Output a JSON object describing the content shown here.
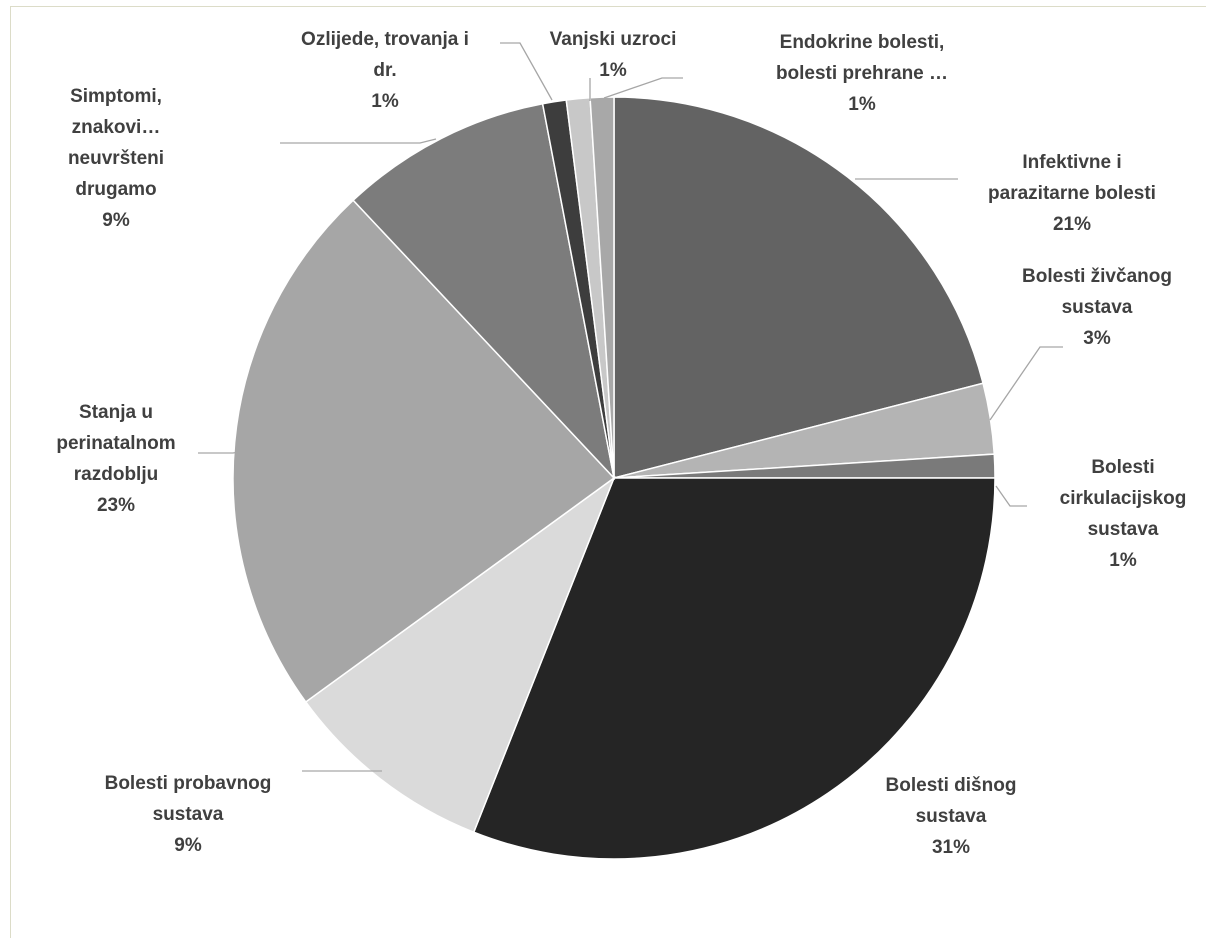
{
  "chart_data": {
    "type": "pie",
    "start_angle_deg": 0,
    "direction": "clockwise",
    "colors_by_slice_order": [
      "#636363",
      "#b4b4b4",
      "#7a7a7a",
      "#252525",
      "#dadada",
      "#a6a6a6",
      "#7c7c7c",
      "#3d3d3d",
      "#c8c8c8",
      "#a8a8a8"
    ],
    "slices": [
      {
        "name": [
          "Infektivne i",
          "parazitarne bolesti"
        ],
        "value": 21,
        "value_label": "21%"
      },
      {
        "name": [
          "Bolesti živčanog",
          "sustava"
        ],
        "value": 3,
        "value_label": "3%"
      },
      {
        "name": [
          "Bolesti",
          "cirkulacijskog",
          "sustava"
        ],
        "value": 1,
        "value_label": "1%"
      },
      {
        "name": [
          "Bolesti dišnog",
          "sustava"
        ],
        "value": 31,
        "value_label": "31%"
      },
      {
        "name": [
          "Bolesti probavnog",
          "sustava"
        ],
        "value": 9,
        "value_label": "9%"
      },
      {
        "name": [
          "Stanja u",
          "perinatalnom",
          "razdoblju"
        ],
        "value": 23,
        "value_label": "23%"
      },
      {
        "name": [
          "Simptomi,",
          "znakovi…",
          "neuvršteni",
          "drugamo"
        ],
        "value": 9,
        "value_label": "9%"
      },
      {
        "name": [
          "Ozlijede, trovanja i",
          "dr."
        ],
        "value": 1,
        "value_label": "1%"
      },
      {
        "name": [
          "Vanjski uzroci"
        ],
        "value": 1,
        "value_label": "1%"
      },
      {
        "name": [
          "Endokrine bolesti,",
          "bolesti prehrane …"
        ],
        "value": 1,
        "value_label": "1%"
      }
    ]
  }
}
